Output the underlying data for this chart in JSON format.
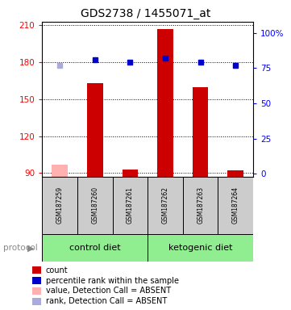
{
  "title": "GDS2738 / 1455071_at",
  "samples": [
    "GSM187259",
    "GSM187260",
    "GSM187261",
    "GSM187262",
    "GSM187263",
    "GSM187264"
  ],
  "ylim_left": [
    87,
    213
  ],
  "yticks_left": [
    90,
    120,
    150,
    180,
    210
  ],
  "ylim_right": [
    -2,
    108
  ],
  "yticks_right": [
    0,
    25,
    50,
    75,
    100
  ],
  "bar_values": [
    null,
    163,
    93,
    207,
    160,
    92
  ],
  "bar_absent_values": [
    97,
    null,
    null,
    null,
    null,
    null
  ],
  "bar_color_present": "#cc0000",
  "bar_color_absent": "#ffb0b0",
  "dot_pct_present": [
    null,
    81,
    79,
    82,
    79,
    77
  ],
  "dot_pct_absent": [
    77,
    null,
    null,
    null,
    null,
    null
  ],
  "dot_color_present": "#0000cc",
  "dot_color_absent": "#aaaadd",
  "bar_width": 0.45,
  "marker_size": 5,
  "background_color": "#ffffff",
  "sample_box_color": "#cccccc",
  "title_fontsize": 10,
  "tick_fontsize": 7.5,
  "sample_fontsize": 5.5,
  "protocol_fontsize": 8,
  "legend_fontsize": 7,
  "group_boundary": 2.5,
  "group_label_1": "control diet",
  "group_label_2": "ketogenic diet",
  "group_color": "#90EE90",
  "protocol_label": "protocol"
}
